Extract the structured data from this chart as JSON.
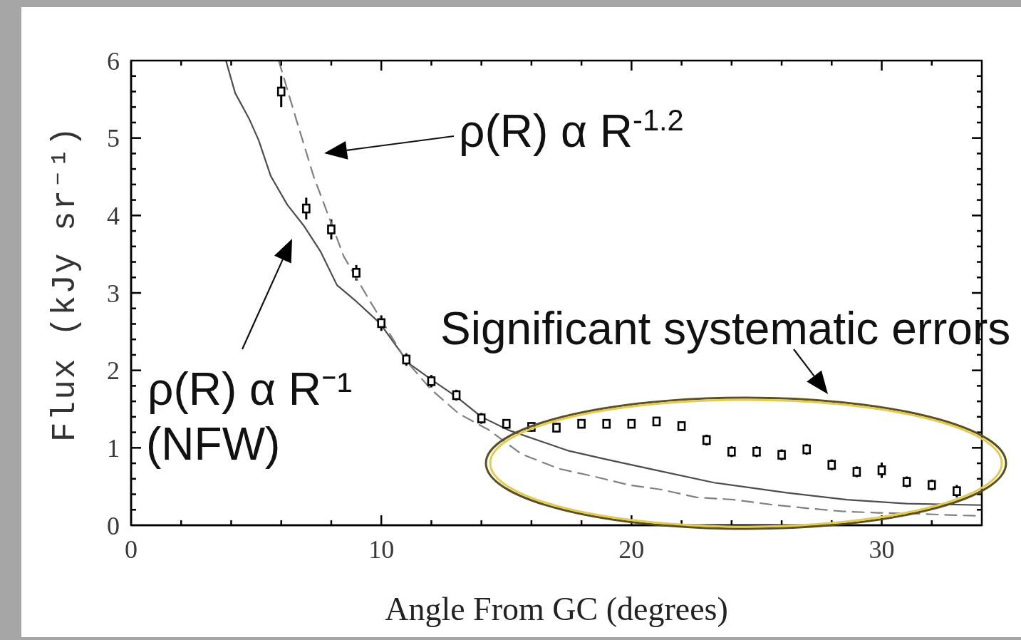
{
  "chart_data": {
    "type": "scatter",
    "xlabel": "Angle From GC (degrees)",
    "ylabel": "Flux (kJy sr⁻¹)",
    "xlim": [
      0,
      34
    ],
    "xticks": [
      0,
      {
        "value": 2,
        "label": null
      },
      {
        "value": 4,
        "label": null
      },
      {
        "value": 6,
        "label": null
      },
      {
        "value": 8,
        "label": null
      },
      10,
      {
        "value": 12,
        "label": null
      },
      {
        "value": 14,
        "label": null
      },
      {
        "value": 16,
        "label": null
      },
      {
        "value": 18,
        "label": null
      },
      20,
      {
        "value": 22,
        "label": null
      },
      {
        "value": 24,
        "label": null
      },
      {
        "value": 26,
        "label": null
      },
      {
        "value": 28,
        "label": null
      },
      30,
      {
        "value": 32,
        "label": null
      }
    ],
    "ylim": [
      0,
      6
    ],
    "yticks": [
      0,
      {
        "value": 0.2,
        "label": null
      },
      {
        "value": 0.4,
        "label": null
      },
      {
        "value": 0.6,
        "label": null
      },
      {
        "value": 0.8,
        "label": null
      },
      1,
      {
        "value": 1.2,
        "label": null
      },
      {
        "value": 1.4,
        "label": null
      },
      {
        "value": 1.6,
        "label": null
      },
      {
        "value": 1.8,
        "label": null
      },
      2,
      {
        "value": 2.2,
        "label": null
      },
      {
        "value": 2.4,
        "label": null
      },
      {
        "value": 2.6,
        "label": null
      },
      {
        "value": 2.8,
        "label": null
      },
      3,
      {
        "value": 3.2,
        "label": null
      },
      {
        "value": 3.4,
        "label": null
      },
      {
        "value": 3.6,
        "label": null
      },
      {
        "value": 3.8,
        "label": null
      },
      4,
      {
        "value": 4.2,
        "label": null
      },
      {
        "value": 4.4,
        "label": null
      },
      {
        "value": 4.6,
        "label": null
      },
      {
        "value": 4.8,
        "label": null
      },
      5,
      {
        "value": 5.2,
        "label": null
      },
      {
        "value": 5.4,
        "label": null
      },
      {
        "value": 5.6,
        "label": null
      },
      {
        "value": 5.8,
        "label": null
      },
      6
    ],
    "series": [
      {
        "color": "#000000",
        "marker": "square",
        "x": [
          6,
          7,
          8,
          9,
          10,
          11,
          12,
          13,
          14,
          15,
          16,
          17,
          18,
          19,
          20,
          21,
          22,
          23,
          24,
          25,
          26,
          27,
          28,
          29,
          30,
          31,
          32,
          33
        ],
        "values": [
          5.6,
          4.09,
          3.82,
          3.26,
          2.61,
          2.14,
          1.86,
          1.68,
          1.38,
          1.31,
          1.27,
          1.26,
          1.31,
          1.31,
          1.31,
          1.34,
          1.28,
          1.1,
          0.95,
          0.95,
          0.91,
          0.98,
          0.78,
          0.69,
          0.71,
          0.56,
          0.52,
          0.44
        ],
        "errors": [
          0.2,
          0.14,
          0.13,
          0.1,
          0.1,
          0.08,
          0.08,
          0.07,
          0.07,
          0.06,
          0.06,
          0.06,
          0.06,
          0.06,
          0.06,
          0.06,
          0.06,
          0.07,
          0.07,
          0.07,
          0.07,
          0.07,
          0.07,
          0.07,
          0.1,
          0.07,
          0.07,
          0.08
        ]
      },
      {
        "type": "line",
        "color": "#4d4d4d",
        "line_style": "solid",
        "x": [
          3.79,
          4.16,
          4.73,
          5.1,
          5.58,
          6.24,
          6.92,
          7.58,
          8.23,
          9.0,
          9.94,
          11.1,
          12,
          13,
          14,
          15.07,
          17.5,
          19,
          21,
          23.3,
          26.2,
          28.6,
          31,
          34
        ],
        "values": [
          6.0,
          5.58,
          5.24,
          4.97,
          4.51,
          4.14,
          3.86,
          3.53,
          3.1,
          2.89,
          2.61,
          2.09,
          1.88,
          1.66,
          1.4,
          1.23,
          0.96,
          0.85,
          0.71,
          0.55,
          0.42,
          0.33,
          0.28,
          0.26
        ]
      },
      {
        "type": "line",
        "color": "#808080",
        "line_style": "dashed",
        "x": [
          5.9,
          6.6,
          7.3,
          7.86,
          8.5,
          9.5,
          11,
          12,
          13.1,
          14.3,
          15.6,
          17.1,
          18.5,
          19.9,
          21.2,
          22.6,
          24.1,
          25.5,
          27,
          28.4,
          29.9,
          31.3,
          32.9,
          34
        ],
        "values": [
          6.0,
          5.24,
          4.5,
          4.02,
          3.47,
          2.92,
          2.12,
          1.75,
          1.44,
          1.23,
          0.92,
          0.73,
          0.63,
          0.52,
          0.46,
          0.36,
          0.33,
          0.27,
          0.22,
          0.18,
          0.16,
          0.15,
          0.13,
          0.12
        ]
      }
    ],
    "annotations": [
      "ρ(R) α R$^{-1.2}$",
      "ρ(R) α R⁻¹",
      "(NFW)",
      "Significant systematic errors"
    ]
  }
}
